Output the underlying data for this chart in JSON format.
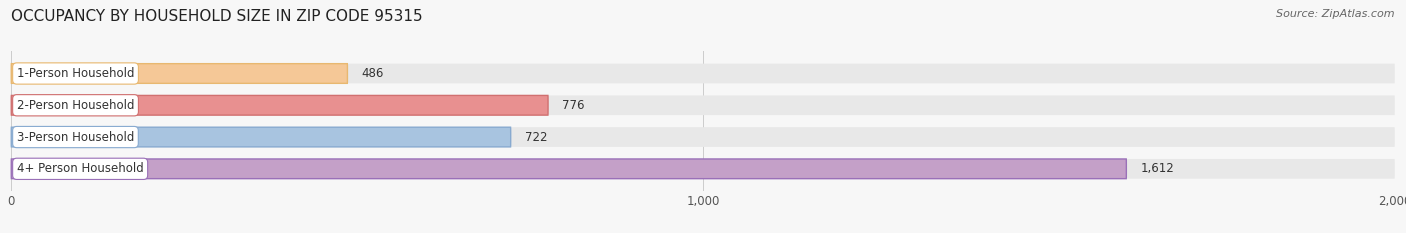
{
  "title": "OCCUPANCY BY HOUSEHOLD SIZE IN ZIP CODE 95315",
  "source": "Source: ZipAtlas.com",
  "categories": [
    "1-Person Household",
    "2-Person Household",
    "3-Person Household",
    "4+ Person Household"
  ],
  "values": [
    486,
    776,
    722,
    1612
  ],
  "bar_colors": [
    "#f5c897",
    "#e89090",
    "#a8c4e0",
    "#c4a0c8"
  ],
  "bar_edge_colors": [
    "#e8b870",
    "#d07070",
    "#88aad0",
    "#9a70b8"
  ],
  "label_bg_colors": [
    "#ffffff",
    "#ffffff",
    "#ffffff",
    "#ffffff"
  ],
  "xlim": [
    0,
    2000
  ],
  "xticks": [
    0,
    1000,
    2000
  ],
  "xtick_labels": [
    "0",
    "1,000",
    "2,000"
  ],
  "background_color": "#f7f7f7",
  "bar_background_color": "#e8e8e8",
  "title_fontsize": 11,
  "label_fontsize": 8.5,
  "value_fontsize": 8.5,
  "source_fontsize": 8
}
